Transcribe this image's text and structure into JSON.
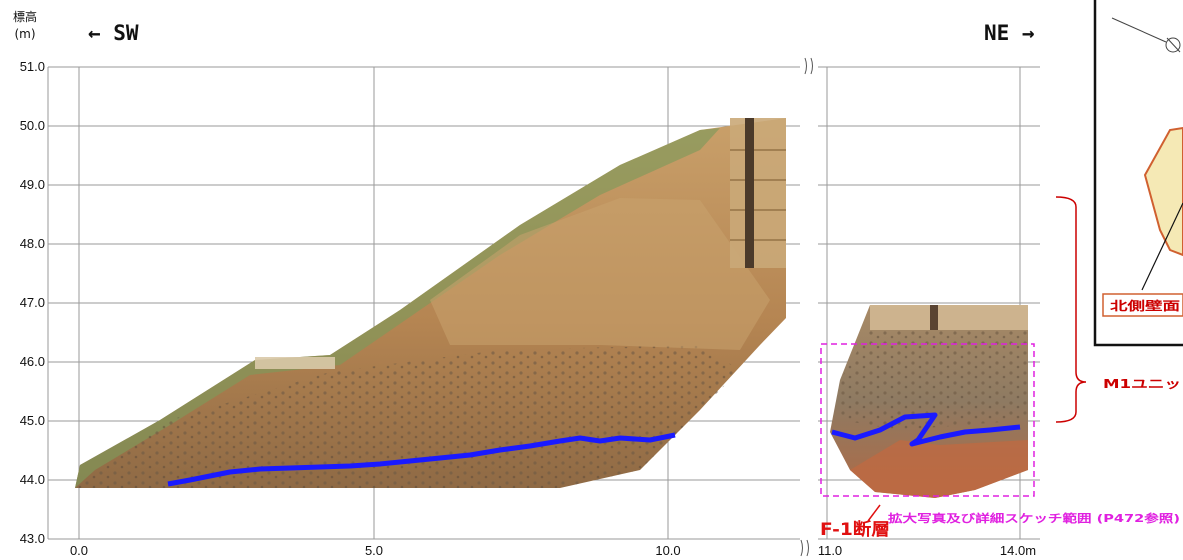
{
  "header": {
    "elevation_label": "標高",
    "elevation_unit": "(m)",
    "left_direction": "← SW",
    "right_direction": "NE →"
  },
  "axes": {
    "y_ticks": [
      "51.0",
      "50.0",
      "49.0",
      "48.0",
      "47.0",
      "46.0",
      "45.0",
      "44.0",
      "43.0"
    ],
    "x_ticks_left": [
      "0.0",
      "5.0",
      "10.0"
    ],
    "x_ticks_right": [
      "11.0",
      "14.0m"
    ]
  },
  "annotations": {
    "fault_label": "F-1断層",
    "detail_range": "拡大写真及び詳細スケッチ範囲 (P472参照)",
    "unit_label": "M1ユニッ",
    "inset_label": "北側壁面"
  },
  "colors": {
    "fault_trace": "#1a1aff",
    "grid": "#9a9a9a",
    "bracket": "#cc0000",
    "detail_box": "#e020e0",
    "fault_label": "#e01010",
    "soil": "#b98a55",
    "soil_dark": "#8a6a48",
    "inset_fill": "#f5e9b5",
    "inset_edge": "#d06030"
  }
}
